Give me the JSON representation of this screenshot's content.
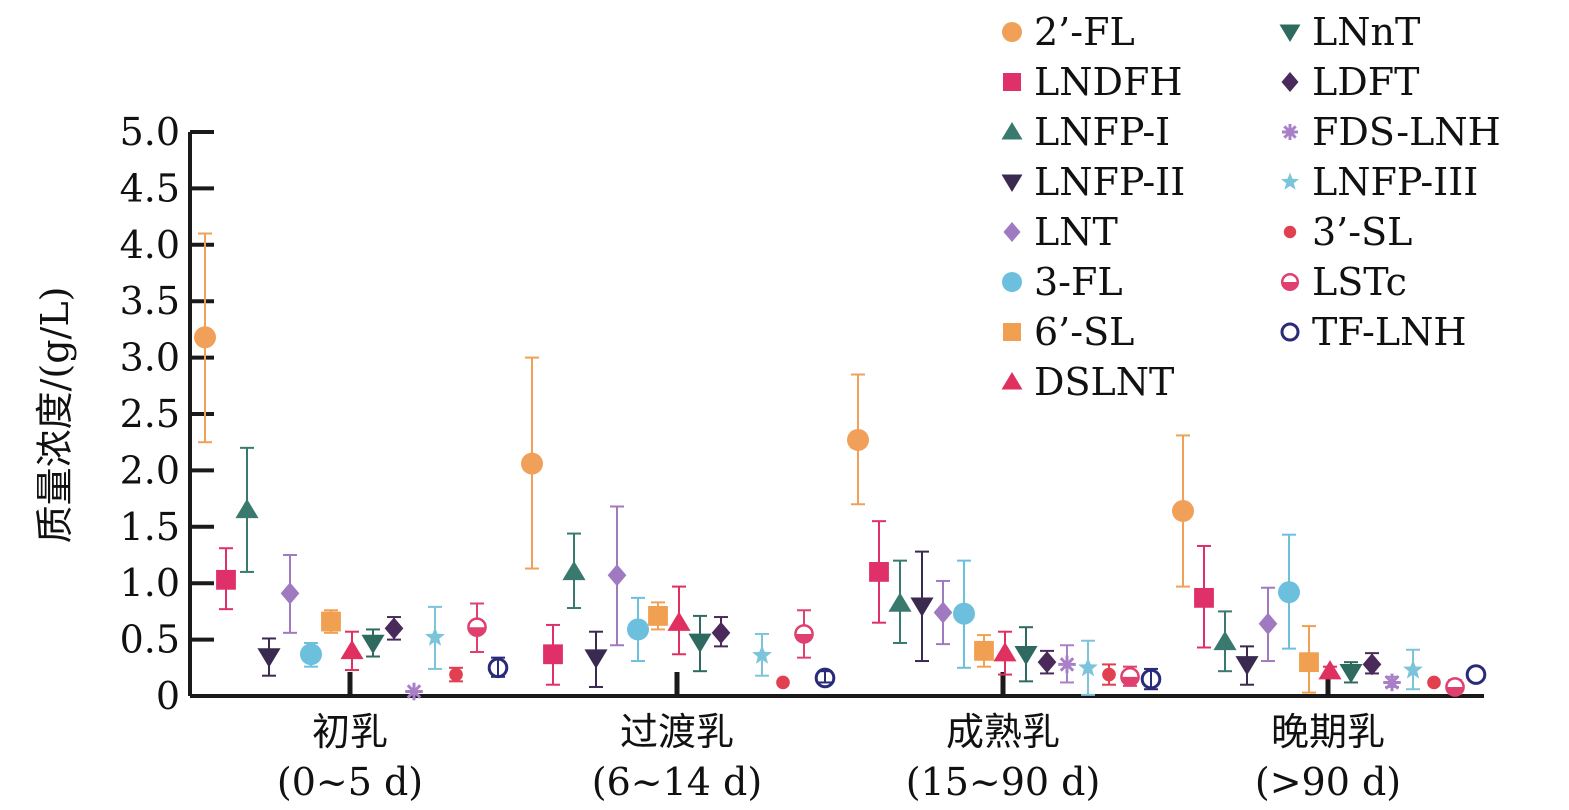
{
  "chart_data": {
    "type": "scatter",
    "ylabel": "质量浓度/(g/L)",
    "ylim": [
      0,
      5.0
    ],
    "yticks": [
      "0",
      "0.5",
      "1.0",
      "1.5",
      "2.0",
      "2.5",
      "3.0",
      "3.5",
      "4.0",
      "4.5",
      "5.0"
    ],
    "categories": [
      {
        "line1": "初乳",
        "line2": "(0~5 d)"
      },
      {
        "line1": "过渡乳",
        "line2": "(6~14 d)"
      },
      {
        "line1": "成熟乳",
        "line2": "(15~90 d)"
      },
      {
        "line1": "晚期乳",
        "line2": "(>90 d)"
      }
    ],
    "legend_placement": "top-right",
    "series": [
      {
        "name": "2’-FL",
        "marker": "circle",
        "color": "#F0A058",
        "values": [
          3.18,
          2.06,
          2.27,
          1.64
        ],
        "err_low": [
          2.25,
          1.13,
          1.7,
          0.97
        ],
        "err_high": [
          4.1,
          3.0,
          2.85,
          2.31
        ]
      },
      {
        "name": "LNDFH",
        "marker": "square",
        "color": "#E0306A",
        "values": [
          1.03,
          0.37,
          1.1,
          0.87
        ],
        "err_low": [
          0.77,
          0.1,
          0.65,
          0.43
        ],
        "err_high": [
          1.31,
          0.63,
          1.55,
          1.33
        ]
      },
      {
        "name": "LNFP-I",
        "marker": "triangle-up",
        "color": "#3A7A6E",
        "values": [
          1.65,
          1.1,
          0.82,
          0.48
        ],
        "err_low": [
          1.1,
          0.78,
          0.47,
          0.22
        ],
        "err_high": [
          2.2,
          1.44,
          1.2,
          0.75
        ]
      },
      {
        "name": "LNFP-II",
        "marker": "triangle-down",
        "color": "#3A2A50",
        "values": [
          0.35,
          0.34,
          0.8,
          0.28
        ],
        "err_low": [
          0.18,
          0.08,
          0.31,
          0.1
        ],
        "err_high": [
          0.51,
          0.57,
          1.28,
          0.44
        ]
      },
      {
        "name": "LNT",
        "marker": "diamond",
        "color": "#A07AC0",
        "values": [
          0.91,
          1.07,
          0.74,
          0.64
        ],
        "err_low": [
          0.56,
          0.45,
          0.46,
          0.31
        ],
        "err_high": [
          1.25,
          1.68,
          1.02,
          0.96
        ]
      },
      {
        "name": "3-FL",
        "marker": "circle",
        "color": "#6CC0DE",
        "values": [
          0.37,
          0.59,
          0.73,
          0.92
        ],
        "err_low": [
          0.26,
          0.31,
          0.25,
          0.42
        ],
        "err_high": [
          0.47,
          0.87,
          1.2,
          1.43
        ]
      },
      {
        "name": "6’-SL",
        "marker": "square",
        "color": "#F0A050",
        "values": [
          0.66,
          0.71,
          0.4,
          0.3
        ],
        "err_low": [
          0.56,
          0.59,
          0.26,
          0.03
        ],
        "err_high": [
          0.76,
          0.83,
          0.54,
          0.62
        ]
      },
      {
        "name": "DSLNT",
        "marker": "triangle-up",
        "color": "#E03060",
        "values": [
          0.4,
          0.65,
          0.38,
          0.22
        ],
        "err_low": [
          0.23,
          0.37,
          0.19,
          0.17
        ],
        "err_high": [
          0.57,
          0.97,
          0.57,
          0.26
        ]
      },
      {
        "name": "LNnT",
        "marker": "triangle-down",
        "color": "#2F6A60",
        "values": [
          0.47,
          0.48,
          0.37,
          0.21
        ],
        "err_low": [
          0.35,
          0.22,
          0.13,
          0.12
        ],
        "err_high": [
          0.59,
          0.71,
          0.61,
          0.3
        ]
      },
      {
        "name": "LDFT",
        "marker": "diamond",
        "color": "#4A2A5A",
        "values": [
          0.6,
          0.56,
          0.3,
          0.28
        ],
        "err_low": [
          0.5,
          0.44,
          0.2,
          0.2
        ],
        "err_high": [
          0.7,
          0.7,
          0.4,
          0.38
        ]
      },
      {
        "name": "FDS-LNH",
        "marker": "asterisk",
        "color": "#A880C8",
        "values": [
          0.04,
          null,
          0.28,
          0.12
        ],
        "err_low": [
          null,
          null,
          0.12,
          0.08
        ],
        "err_high": [
          null,
          null,
          0.45,
          0.17
        ]
      },
      {
        "name": "LNFP-III",
        "marker": "star",
        "color": "#7CC4DA",
        "values": [
          0.52,
          0.36,
          0.25,
          0.23
        ],
        "err_low": [
          0.24,
          0.18,
          0.01,
          0.06
        ],
        "err_high": [
          0.79,
          0.55,
          0.49,
          0.41
        ]
      },
      {
        "name": "3’-SL",
        "marker": "circle-small",
        "color": "#E04050",
        "values": [
          0.19,
          0.12,
          0.19,
          0.12
        ],
        "err_low": [
          0.13,
          null,
          0.1,
          null
        ],
        "err_high": [
          0.25,
          null,
          0.28,
          null
        ]
      },
      {
        "name": "LSTc",
        "marker": "half-circle",
        "color": "#E04070",
        "values": [
          0.61,
          0.55,
          0.17,
          0.08
        ],
        "err_low": [
          0.39,
          0.34,
          0.09,
          0.02
        ],
        "err_high": [
          0.82,
          0.76,
          0.26,
          0.14
        ]
      },
      {
        "name": "TF-LNH",
        "marker": "open-circle",
        "color": "#2A2A7A",
        "values": [
          0.25,
          0.16,
          0.15,
          0.19
        ],
        "err_low": [
          0.17,
          0.12,
          0.06,
          null
        ],
        "err_high": [
          0.34,
          0.22,
          0.24,
          null
        ]
      }
    ]
  }
}
